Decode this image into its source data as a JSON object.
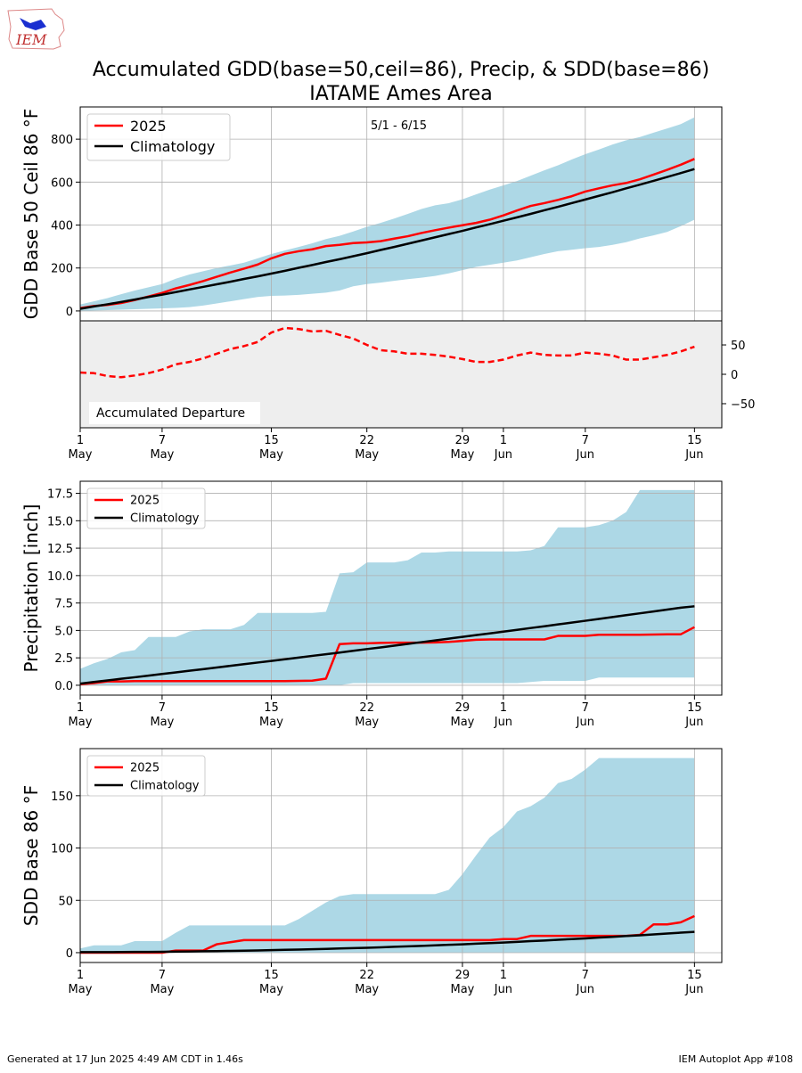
{
  "title": "Accumulated GDD(base=50,ceil=86), Precip, & SDD(base=86)",
  "subtitle": "IATAME Ames Area",
  "logo": "IEM",
  "footer": {
    "left": "Generated at 17 Jun 2025 4:49 AM CDT in 1.46s",
    "right": "IEM Autoplot App #108"
  },
  "chart_data": [
    {
      "type": "line",
      "ylabel": "GDD Base 50 Ceil 86 °F",
      "annotation": "5/1 - 6/15",
      "grid": true,
      "legend": "upper left",
      "x": [
        "May 1",
        "May 2",
        "May 3",
        "May 4",
        "May 5",
        "May 6",
        "May 7",
        "May 8",
        "May 9",
        "May 10",
        "May 11",
        "May 12",
        "May 13",
        "May 14",
        "May 15",
        "May 16",
        "May 17",
        "May 18",
        "May 19",
        "May 20",
        "May 21",
        "May 22",
        "May 23",
        "May 24",
        "May 25",
        "May 26",
        "May 27",
        "May 28",
        "May 29",
        "May 30",
        "May 31",
        "Jun 1",
        "Jun 2",
        "Jun 3",
        "Jun 4",
        "Jun 5",
        "Jun 6",
        "Jun 7",
        "Jun 8",
        "Jun 9",
        "Jun 10",
        "Jun 11",
        "Jun 12",
        "Jun 13",
        "Jun 14",
        "Jun 15"
      ],
      "xticks": [
        "May 1",
        "May 7",
        "May 15",
        "May 22",
        "May 29",
        "Jun 1",
        "Jun 7",
        "Jun 15"
      ],
      "ylim": [
        -46,
        950
      ],
      "yticks": [
        0,
        200,
        400,
        600,
        800
      ],
      "band": {
        "color": "#add8e6",
        "lower": [
          0,
          2,
          4,
          6,
          8,
          10,
          12,
          14,
          18,
          25,
          35,
          45,
          55,
          65,
          70,
          72,
          75,
          80,
          85,
          95,
          115,
          125,
          132,
          140,
          148,
          155,
          163,
          175,
          190,
          205,
          215,
          225,
          235,
          250,
          265,
          278,
          285,
          292,
          298,
          308,
          320,
          338,
          352,
          368,
          395,
          425
        ],
        "upper": [
          30,
          45,
          60,
          78,
          95,
          110,
          125,
          150,
          170,
          185,
          200,
          212,
          225,
          245,
          265,
          282,
          298,
          315,
          335,
          350,
          370,
          392,
          410,
          430,
          452,
          475,
          492,
          502,
          520,
          543,
          565,
          585,
          605,
          630,
          655,
          678,
          705,
          730,
          752,
          775,
          795,
          810,
          830,
          850,
          870,
          902
        ]
      },
      "series": [
        {
          "name": "2025",
          "color": "#ff0000",
          "values": [
            13,
            23,
            28,
            37,
            51,
            67,
            84,
            105,
            121,
            139,
            159,
            179,
            197,
            216,
            245,
            266,
            278,
            287,
            302,
            308,
            316,
            319,
            325,
            337,
            348,
            363,
            376,
            388,
            399,
            410,
            425,
            445,
            468,
            489,
            502,
            517,
            534,
            556,
            571,
            585,
            596,
            613,
            635,
            657,
            681,
            708
          ]
        },
        {
          "name": "Climatology",
          "color": "#000000",
          "values": [
            10,
            21,
            31,
            42,
            53,
            65,
            76,
            88,
            100,
            112,
            124,
            136,
            149,
            161,
            174,
            187,
            201,
            214,
            228,
            241,
            255,
            269,
            284,
            298,
            313,
            328,
            343,
            358,
            373,
            389,
            404,
            420,
            436,
            452,
            469,
            485,
            502,
            519,
            536,
            553,
            571,
            588,
            606,
            624,
            642,
            661
          ]
        }
      ]
    },
    {
      "type": "line",
      "annotation": "Accumulated Departure",
      "grid": false,
      "yaxis": "right",
      "background": "#eeeeee",
      "x": [
        "May 1",
        "May 2",
        "May 3",
        "May 4",
        "May 5",
        "May 6",
        "May 7",
        "May 8",
        "May 9",
        "May 10",
        "May 11",
        "May 12",
        "May 13",
        "May 14",
        "May 15",
        "May 16",
        "May 17",
        "May 18",
        "May 19",
        "May 20",
        "May 21",
        "May 22",
        "May 23",
        "May 24",
        "May 25",
        "May 26",
        "May 27",
        "May 28",
        "May 29",
        "May 30",
        "May 31",
        "Jun 1",
        "Jun 2",
        "Jun 3",
        "Jun 4",
        "Jun 5",
        "Jun 6",
        "Jun 7",
        "Jun 8",
        "Jun 9",
        "Jun 10",
        "Jun 11",
        "Jun 12",
        "Jun 13",
        "Jun 14",
        "Jun 15"
      ],
      "xticks": [
        {
          "value": "May 1",
          "label": [
            "1",
            "May"
          ]
        },
        {
          "value": "May 7",
          "label": [
            "7",
            "May"
          ]
        },
        {
          "value": "May 15",
          "label": [
            "15",
            "May"
          ]
        },
        {
          "value": "May 22",
          "label": [
            "22",
            "May"
          ]
        },
        {
          "value": "May 29",
          "label": [
            "29",
            "May"
          ]
        },
        {
          "value": "Jun 1",
          "label": [
            "1",
            "Jun"
          ]
        },
        {
          "value": "Jun 7",
          "label": [
            "7",
            "Jun"
          ]
        },
        {
          "value": "Jun 15",
          "label": [
            "15",
            "Jun"
          ]
        }
      ],
      "ylim": [
        -91,
        91
      ],
      "yticks": [
        {
          "value": -50,
          "label": "−50"
        },
        0,
        50
      ],
      "series": [
        {
          "color": "#ff0000",
          "linestyle": "dashed",
          "values": [
            3,
            2,
            -3,
            -5,
            -2,
            2,
            8,
            17,
            21,
            27,
            35,
            43,
            48,
            55,
            71,
            79,
            77,
            73,
            74,
            67,
            61,
            50,
            41,
            39,
            35,
            35,
            33,
            30,
            26,
            21,
            21,
            25,
            32,
            37,
            33,
            32,
            32,
            37,
            35,
            32,
            25,
            25,
            29,
            33,
            39,
            47
          ]
        }
      ]
    },
    {
      "type": "line",
      "ylabel": "Precipitation [inch]",
      "grid": true,
      "legend": "upper left",
      "x": [
        "May 1",
        "May 2",
        "May 3",
        "May 4",
        "May 5",
        "May 6",
        "May 7",
        "May 8",
        "May 9",
        "May 10",
        "May 11",
        "May 12",
        "May 13",
        "May 14",
        "May 15",
        "May 16",
        "May 17",
        "May 18",
        "May 19",
        "May 20",
        "May 21",
        "May 22",
        "May 23",
        "May 24",
        "May 25",
        "May 26",
        "May 27",
        "May 28",
        "May 29",
        "May 30",
        "May 31",
        "Jun 1",
        "Jun 2",
        "Jun 3",
        "Jun 4",
        "Jun 5",
        "Jun 6",
        "Jun 7",
        "Jun 8",
        "Jun 9",
        "Jun 10",
        "Jun 11",
        "Jun 12",
        "Jun 13",
        "Jun 14",
        "Jun 15"
      ],
      "xticks": [
        {
          "value": "May 1",
          "label": [
            "1",
            "May"
          ]
        },
        {
          "value": "May 7",
          "label": [
            "7",
            "May"
          ]
        },
        {
          "value": "May 15",
          "label": [
            "15",
            "May"
          ]
        },
        {
          "value": "May 22",
          "label": [
            "22",
            "May"
          ]
        },
        {
          "value": "May 29",
          "label": [
            "29",
            "May"
          ]
        },
        {
          "value": "Jun 1",
          "label": [
            "1",
            "Jun"
          ]
        },
        {
          "value": "Jun 7",
          "label": [
            "7",
            "Jun"
          ]
        },
        {
          "value": "Jun 15",
          "label": [
            "15",
            "Jun"
          ]
        }
      ],
      "ylim": [
        -0.9,
        18.6
      ],
      "yticks": [
        {
          "value": 0,
          "label": "0.0"
        },
        2.5,
        {
          "value": 5,
          "label": "5.0"
        },
        7.5,
        {
          "value": 10,
          "label": "10.0"
        },
        12.5,
        {
          "value": 15,
          "label": "15.0"
        },
        17.5
      ],
      "band": {
        "color": "#add8e6",
        "lower": [
          0,
          0,
          0,
          0,
          0,
          0,
          0,
          0,
          0,
          0,
          0,
          0,
          0,
          0,
          0,
          0,
          0,
          0,
          0,
          0,
          0.2,
          0.2,
          0.2,
          0.2,
          0.2,
          0.2,
          0.2,
          0.2,
          0.2,
          0.2,
          0.2,
          0.2,
          0.2,
          0.3,
          0.4,
          0.4,
          0.4,
          0.4,
          0.7,
          0.7,
          0.7,
          0.7,
          0.7,
          0.7,
          0.7,
          0.7
        ],
        "upper": [
          1.5,
          2.0,
          2.4,
          3.0,
          3.2,
          4.4,
          4.4,
          4.4,
          4.9,
          5.1,
          5.1,
          5.1,
          5.5,
          6.6,
          6.6,
          6.6,
          6.6,
          6.6,
          6.7,
          10.2,
          10.3,
          11.2,
          11.2,
          11.2,
          11.4,
          12.1,
          12.1,
          12.2,
          12.2,
          12.2,
          12.2,
          12.2,
          12.2,
          12.3,
          12.7,
          14.4,
          14.4,
          14.4,
          14.6,
          15.0,
          15.8,
          17.8,
          17.8,
          17.8,
          17.8,
          17.8
        ]
      },
      "series": [
        {
          "name": "2025",
          "color": "#ff0000",
          "values": [
            0.1,
            0.2,
            0.35,
            0.35,
            0.38,
            0.38,
            0.38,
            0.38,
            0.38,
            0.38,
            0.38,
            0.38,
            0.38,
            0.38,
            0.38,
            0.38,
            0.4,
            0.42,
            0.6,
            3.75,
            3.82,
            3.82,
            3.86,
            3.88,
            3.88,
            3.88,
            3.9,
            3.95,
            4.05,
            4.15,
            4.18,
            4.18,
            4.18,
            4.18,
            4.18,
            4.5,
            4.5,
            4.5,
            4.6,
            4.6,
            4.6,
            4.6,
            4.62,
            4.65,
            4.65,
            5.3
          ]
        },
        {
          "name": "Climatology",
          "color": "#000000",
          "values": [
            0.15,
            0.3,
            0.44,
            0.59,
            0.73,
            0.88,
            1.03,
            1.17,
            1.32,
            1.47,
            1.62,
            1.77,
            1.92,
            2.07,
            2.22,
            2.37,
            2.52,
            2.68,
            2.83,
            2.98,
            3.14,
            3.3,
            3.45,
            3.61,
            3.77,
            3.93,
            4.09,
            4.25,
            4.41,
            4.57,
            4.73,
            4.89,
            5.05,
            5.22,
            5.38,
            5.55,
            5.71,
            5.88,
            6.05,
            6.22,
            6.39,
            6.56,
            6.73,
            6.9,
            7.07,
            7.2
          ]
        }
      ]
    },
    {
      "type": "line",
      "ylabel": "SDD Base 86 °F",
      "grid": true,
      "legend": "upper left",
      "x": [
        "May 1",
        "May 2",
        "May 3",
        "May 4",
        "May 5",
        "May 6",
        "May 7",
        "May 8",
        "May 9",
        "May 10",
        "May 11",
        "May 12",
        "May 13",
        "May 14",
        "May 15",
        "May 16",
        "May 17",
        "May 18",
        "May 19",
        "May 20",
        "May 21",
        "May 22",
        "May 23",
        "May 24",
        "May 25",
        "May 26",
        "May 27",
        "May 28",
        "May 29",
        "May 30",
        "May 31",
        "Jun 1",
        "Jun 2",
        "Jun 3",
        "Jun 4",
        "Jun 5",
        "Jun 6",
        "Jun 7",
        "Jun 8",
        "Jun 9",
        "Jun 10",
        "Jun 11",
        "Jun 12",
        "Jun 13",
        "Jun 14",
        "Jun 15"
      ],
      "xticks": [
        {
          "value": "May 1",
          "label": [
            "1",
            "May"
          ]
        },
        {
          "value": "May 7",
          "label": [
            "7",
            "May"
          ]
        },
        {
          "value": "May 15",
          "label": [
            "15",
            "May"
          ]
        },
        {
          "value": "May 22",
          "label": [
            "22",
            "May"
          ]
        },
        {
          "value": "May 29",
          "label": [
            "29",
            "May"
          ]
        },
        {
          "value": "Jun 1",
          "label": [
            "1",
            "Jun"
          ]
        },
        {
          "value": "Jun 7",
          "label": [
            "7",
            "Jun"
          ]
        },
        {
          "value": "Jun 15",
          "label": [
            "15",
            "Jun"
          ]
        }
      ],
      "ylim": [
        -9.4,
        195
      ],
      "yticks": [
        0,
        50,
        100,
        150
      ],
      "band": {
        "color": "#add8e6",
        "lower": [
          0,
          0,
          0,
          0,
          0,
          0,
          0,
          0,
          0,
          0,
          0,
          0,
          0,
          0,
          0,
          0,
          0,
          0,
          0,
          0,
          0,
          0,
          0,
          0,
          0,
          0,
          0,
          0,
          0,
          0,
          0,
          0,
          0,
          0,
          0,
          0,
          0,
          0,
          0,
          0,
          0,
          0,
          0,
          0,
          0,
          0
        ],
        "upper": [
          4,
          7,
          7,
          7,
          11,
          11,
          11,
          19,
          26,
          26,
          26,
          26,
          26,
          26,
          26,
          26,
          32,
          40,
          48,
          54,
          56,
          56,
          56,
          56,
          56,
          56,
          56,
          60,
          75,
          93,
          110,
          120,
          135,
          140,
          148,
          162,
          166,
          175,
          186,
          186,
          186,
          186,
          186,
          186,
          186,
          186
        ]
      },
      "series": [
        {
          "name": "2025",
          "color": "#ff0000",
          "values": [
            0,
            0,
            0,
            0,
            0,
            0,
            0,
            2,
            2,
            2,
            8,
            10,
            12,
            12,
            12,
            12,
            12,
            12,
            12,
            12,
            12,
            12,
            12,
            12,
            12,
            12,
            12,
            12,
            12,
            12,
            12,
            13,
            13,
            16,
            16,
            16,
            16,
            16,
            16,
            16,
            16,
            17,
            27,
            27,
            29,
            35
          ]
        },
        {
          "name": "Climatology",
          "color": "#000000",
          "values": [
            0.5,
            0.5,
            0.5,
            0.6,
            0.7,
            0.7,
            0.8,
            1.0,
            1.1,
            1.3,
            1.5,
            1.7,
            1.9,
            2.1,
            2.4,
            2.7,
            3.0,
            3.3,
            3.6,
            4.0,
            4.3,
            4.7,
            5.1,
            5.6,
            6.0,
            6.5,
            7.0,
            7.5,
            8.0,
            8.6,
            9.1,
            9.7,
            10.3,
            11.0,
            11.6,
            12.3,
            13.0,
            13.6,
            14.4,
            15.1,
            15.9,
            16.6,
            17.4,
            18.3,
            19.1,
            19.9
          ]
        }
      ]
    }
  ]
}
